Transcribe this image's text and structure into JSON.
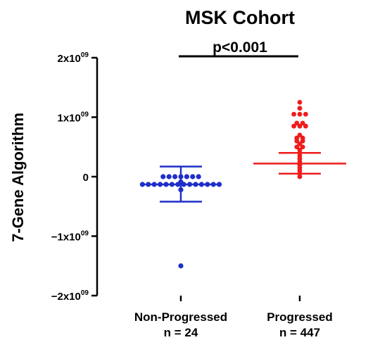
{
  "chart_data": {
    "type": "scatter",
    "title": "MSK Cohort",
    "ylabel": "7-Gene Algorithm",
    "ylim": [
      -2000000000,
      2000000000
    ],
    "yticks": [
      {
        "value": 2000000000,
        "base": "2x10",
        "exp": "09"
      },
      {
        "value": 1000000000,
        "base": "1x10",
        "exp": "09"
      },
      {
        "value": 0,
        "base": "0",
        "exp": ""
      },
      {
        "value": -1000000000,
        "base": "−1x10",
        "exp": "09"
      },
      {
        "value": -2000000000,
        "base": "−2x10",
        "exp": "09"
      }
    ],
    "significance": "p<0.001",
    "groups": [
      {
        "name": "Non-Progressed",
        "n_label": "n = 24",
        "color": "#1f2fc8",
        "mean": -130000000,
        "sd_upper": 170000000,
        "sd_lower": -420000000,
        "values": [
          -1500000000,
          -220000000,
          -90000000,
          -130000000,
          -130000000,
          -130000000,
          -130000000,
          -130000000,
          -130000000,
          -130000000,
          -130000000,
          -130000000,
          -130000000,
          -130000000,
          -130000000,
          -130000000,
          -130000000,
          0,
          0,
          0,
          0,
          0,
          0,
          0
        ]
      },
      {
        "name": "Progressed",
        "n_label": "n = 447",
        "color": "#ee1c1c",
        "mean": 220000000,
        "sd_upper": 400000000,
        "sd_lower": 50000000,
        "values": [
          1250000000,
          1150000000,
          1050000000,
          1050000000,
          1050000000,
          900000000,
          900000000,
          850000000,
          850000000,
          850000000,
          700000000,
          650000000,
          650000000,
          600000000,
          600000000,
          550000000,
          500000000,
          500000000,
          450000000,
          400000000,
          350000000,
          300000000,
          250000000,
          200000000,
          150000000,
          100000000,
          50000000,
          0
        ]
      }
    ]
  }
}
